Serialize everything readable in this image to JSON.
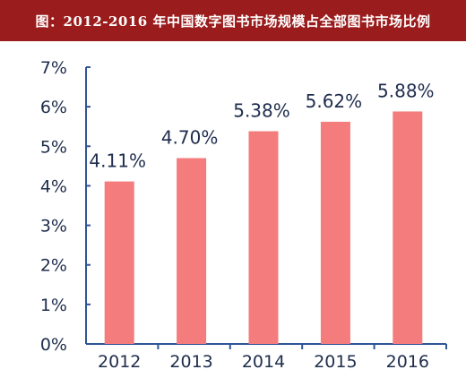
{
  "header": {
    "title": "图：2012-2016 年中国数字图书市场规模占全部图书市场比例"
  },
  "colors": {
    "header_bg": "#9b1c1c",
    "bar": "#f47c7c",
    "axis": "#2f5597",
    "text": "#1f2d4d"
  },
  "chart_data": {
    "type": "bar",
    "title": "",
    "xlabel": "",
    "ylabel": "",
    "categories": [
      "2012",
      "2013",
      "2014",
      "2015",
      "2016"
    ],
    "values": [
      4.11,
      4.7,
      5.38,
      5.62,
      5.88
    ],
    "data_labels": [
      "4.11%",
      "4.70%",
      "5.38%",
      "5.62%",
      "5.88%"
    ],
    "yticks": [
      "0%",
      "1%",
      "2%",
      "3%",
      "4%",
      "5%",
      "6%",
      "7%"
    ],
    "ylim": [
      0,
      7
    ],
    "grid": false,
    "legend": "none"
  }
}
